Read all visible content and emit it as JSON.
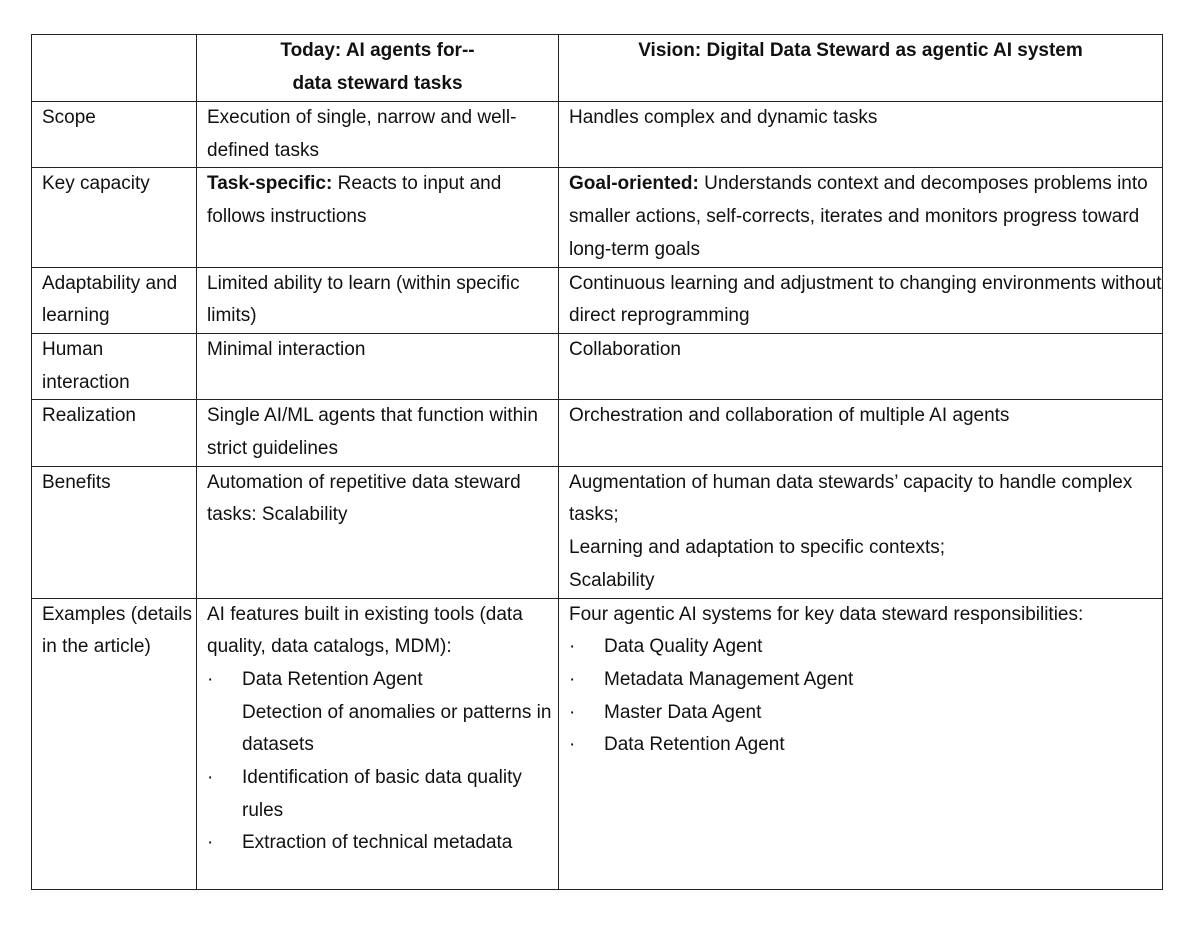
{
  "header": {
    "col1": "",
    "col2_line1": "Today: AI agents for--",
    "col2_line2": "data steward tasks",
    "col3": "Vision: Digital Data Steward as agentic AI system"
  },
  "rows": [
    {
      "label": "Scope",
      "today": "Execution of single, narrow and well-defined tasks",
      "vision": "Handles complex and dynamic tasks"
    },
    {
      "label": "Key capacity",
      "today_bold": "Task-specific:",
      "today": " Reacts to input and follows instructions",
      "vision_bold": "Goal-oriented:",
      "vision": " Understands context and decomposes problems into smaller actions, self-corrects, iterates and monitors progress toward long-term goals"
    },
    {
      "label": "Adaptability and learning",
      "today": "Limited ability to learn (within specific limits)",
      "vision": "Continuous learning and adjustment to changing environments without direct reprogramming"
    },
    {
      "label": "Human interaction",
      "today": "Minimal interaction",
      "vision": "Collaboration"
    },
    {
      "label": "Realization",
      "today": "Single AI/ML agents that function within strict guidelines",
      "vision": "Orchestration and collaboration of multiple AI agents"
    },
    {
      "label": "Benefits",
      "today": "Automation of repetitive data steward tasks: Scalability",
      "vision_lines": [
        "Augmentation of human data stewards’ capacity to handle complex tasks;",
        "Learning and adaptation to specific contexts;",
        "Scalability"
      ]
    },
    {
      "label": "Examples (details in the article)",
      "today": "AI features built in existing tools (data quality, data catalogs, MDM):",
      "today_items": [
        "Data Retention Agent",
        "Detection of anomalies or patterns in datasets",
        "Identification of basic data quality rules",
        "Extraction of technical metadata"
      ],
      "vision": "Four agentic AI systems for key data steward responsibilities:",
      "vision_items": [
        "Data Quality Agent",
        "Metadata Management Agent",
        "Master Data Agent",
        "Data Retention Agent"
      ]
    }
  ],
  "bullet": "·"
}
